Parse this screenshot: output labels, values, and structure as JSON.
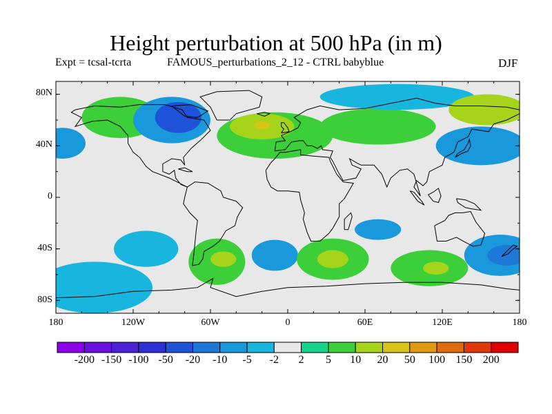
{
  "title": "Height perturbation at 500 hPa (in m)",
  "subtitle_left": "Expt = tcsal-tcrta",
  "subtitle_mid": "FAMOUS_perturbations_2_12 - CTRL babyblue",
  "subtitle_right": "DJF",
  "lat_labels": [
    "80N",
    "40N",
    "0",
    "40S",
    "80S"
  ],
  "lon_labels": [
    "180",
    "120W",
    "60W",
    "0",
    "60E",
    "120E",
    "180"
  ],
  "colorbar": {
    "colors": [
      "#8a00e8",
      "#6a0fe0",
      "#4a20d8",
      "#2e2fd6",
      "#1e52d8",
      "#1e78d8",
      "#1a98dc",
      "#18b6de",
      "#e8e8e8",
      "#16d38a",
      "#3ccf3a",
      "#a6d41a",
      "#d6c418",
      "#e09a10",
      "#e06a0c",
      "#e0380a",
      "#e00000"
    ],
    "labels": [
      "-200",
      "-150",
      "-100",
      "-50",
      "-20",
      "-10",
      "-5",
      "-2",
      "2",
      "5",
      "10",
      "20",
      "50",
      "100",
      "150",
      "200"
    ]
  },
  "regions": [
    {
      "name": "green-north-pacific",
      "color": "#3ccf3a",
      "shape": "ellipse",
      "cx": -130,
      "cy": 62,
      "rx": 30,
      "ry": 16
    },
    {
      "name": "blue-north-america",
      "color": "#1a98dc",
      "shape": "ellipse",
      "cx": -90,
      "cy": 60,
      "rx": 30,
      "ry": 18
    },
    {
      "name": "darkblue-north-america",
      "color": "#1e52d8",
      "shape": "ellipse",
      "cx": -85,
      "cy": 62,
      "rx": 18,
      "ry": 12
    },
    {
      "name": "green-atlantic",
      "color": "#3ccf3a",
      "shape": "ellipse",
      "cx": -10,
      "cy": 48,
      "rx": 45,
      "ry": 18
    },
    {
      "name": "yellow-atlantic",
      "color": "#a6d41a",
      "shape": "ellipse",
      "cx": -20,
      "cy": 55,
      "rx": 25,
      "ry": 10
    },
    {
      "name": "orange-atlantic",
      "color": "#d6c418",
      "shape": "ellipse",
      "cx": -20,
      "cy": 56,
      "rx": 6,
      "ry": 3
    },
    {
      "name": "blue-north-pacific-west",
      "color": "#1a98dc",
      "shape": "ellipse",
      "cx": -175,
      "cy": 42,
      "rx": 18,
      "ry": 12
    },
    {
      "name": "green-eurasia",
      "color": "#3ccf3a",
      "shape": "ellipse",
      "cx": 70,
      "cy": 55,
      "rx": 45,
      "ry": 14
    },
    {
      "name": "blue-asia",
      "color": "#18b6de",
      "shape": "ellipse",
      "cx": 85,
      "cy": 78,
      "rx": 60,
      "ry": 10
    },
    {
      "name": "blue-north-pacific",
      "color": "#1a98dc",
      "shape": "ellipse",
      "cx": 150,
      "cy": 40,
      "rx": 35,
      "ry": 15
    },
    {
      "name": "green-arctic-east",
      "color": "#a6d41a",
      "shape": "ellipse",
      "cx": 155,
      "cy": 68,
      "rx": 30,
      "ry": 12
    },
    {
      "name": "blue-southeast-pacific",
      "color": "#18b6de",
      "shape": "ellipse",
      "cx": -110,
      "cy": -40,
      "rx": 25,
      "ry": 14
    },
    {
      "name": "green-south-america",
      "color": "#3ccf3a",
      "shape": "ellipse",
      "cx": -55,
      "cy": -50,
      "rx": 22,
      "ry": 18
    },
    {
      "name": "yellow-south-america",
      "color": "#a6d41a",
      "shape": "ellipse",
      "cx": -50,
      "cy": -48,
      "rx": 10,
      "ry": 6
    },
    {
      "name": "blue-south-atlantic",
      "color": "#1a98dc",
      "shape": "ellipse",
      "cx": -10,
      "cy": -45,
      "rx": 18,
      "ry": 12
    },
    {
      "name": "green-south-africa",
      "color": "#3ccf3a",
      "shape": "ellipse",
      "cx": 35,
      "cy": -48,
      "rx": 28,
      "ry": 16
    },
    {
      "name": "yellow-south-africa",
      "color": "#a6d41a",
      "shape": "ellipse",
      "cx": 35,
      "cy": -48,
      "rx": 12,
      "ry": 7
    },
    {
      "name": "blue-indian-ocean",
      "color": "#1a98dc",
      "shape": "ellipse",
      "cx": 70,
      "cy": -25,
      "rx": 18,
      "ry": 8
    },
    {
      "name": "green-south-indian",
      "color": "#3ccf3a",
      "shape": "ellipse",
      "cx": 110,
      "cy": -55,
      "rx": 30,
      "ry": 14
    },
    {
      "name": "yellow-south-indian",
      "color": "#a6d41a",
      "shape": "ellipse",
      "cx": 115,
      "cy": -55,
      "rx": 10,
      "ry": 5
    },
    {
      "name": "blue-southwest-pacific",
      "color": "#1a98dc",
      "shape": "ellipse",
      "cx": 165,
      "cy": -45,
      "rx": 28,
      "ry": 16
    },
    {
      "name": "darkblue-southwest-pacific",
      "color": "#1e78d8",
      "shape": "ellipse",
      "cx": 170,
      "cy": -45,
      "rx": 15,
      "ry": 8
    },
    {
      "name": "blue-antarctic",
      "color": "#18b6de",
      "shape": "ellipse",
      "cx": -150,
      "cy": -70,
      "rx": 45,
      "ry": 20
    }
  ]
}
